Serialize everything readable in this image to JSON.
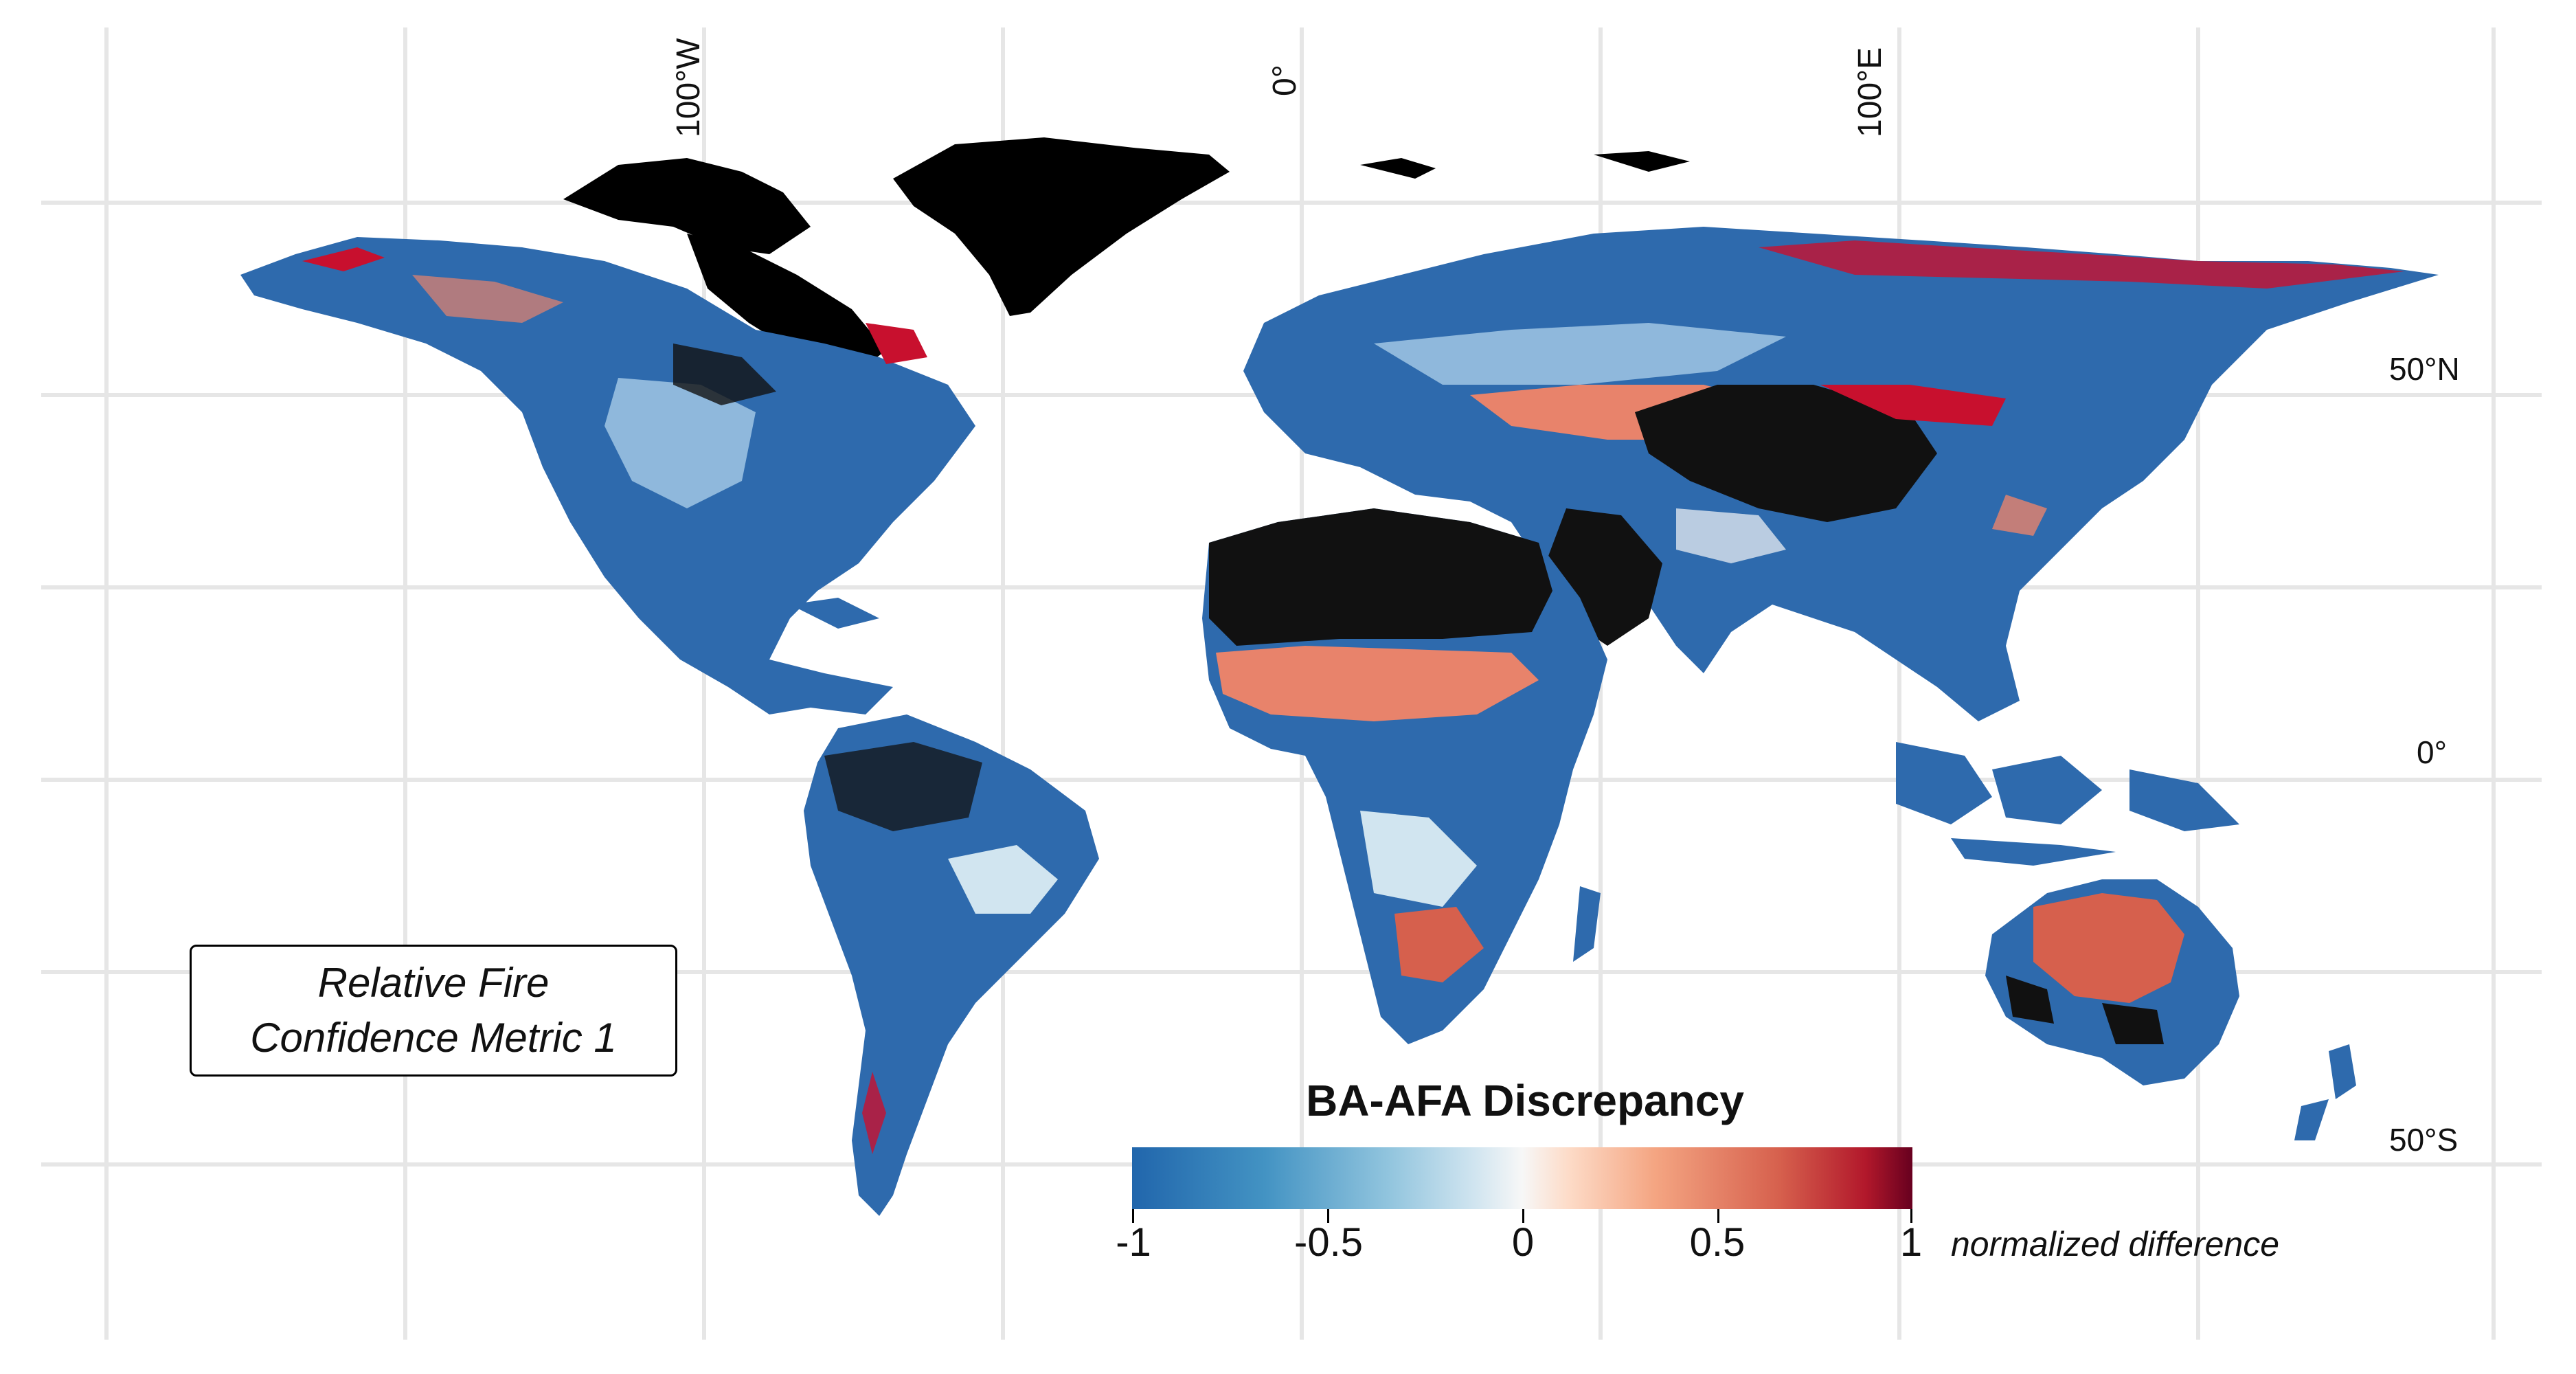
{
  "graticule": {
    "lon_labels": [
      "100°W",
      "0°",
      "100°E"
    ],
    "lat_labels": [
      "50°N",
      "0°",
      "50°S"
    ]
  },
  "annotation": {
    "line1": "Relative Fire",
    "line2": "Confidence Metric 1"
  },
  "legend": {
    "title": "BA-AFA Discrepancy",
    "ticks": [
      "-1",
      "-0.5",
      "0",
      "0.5",
      "1"
    ],
    "unit_label": "normalized difference",
    "palette": [
      "#2166ac",
      "#4393c3",
      "#92c5de",
      "#d1e5f0",
      "#f7f7f7",
      "#fddbc7",
      "#f4a582",
      "#d6604d",
      "#b2182b",
      "#67001f"
    ]
  },
  "colors": {
    "no_data_land": "#000000",
    "grid": "#e6e6e6",
    "blue": "#2e6aad",
    "light_blue": "#8fb8dc",
    "red": "#c8102e",
    "salmon": "#e8836b"
  }
}
